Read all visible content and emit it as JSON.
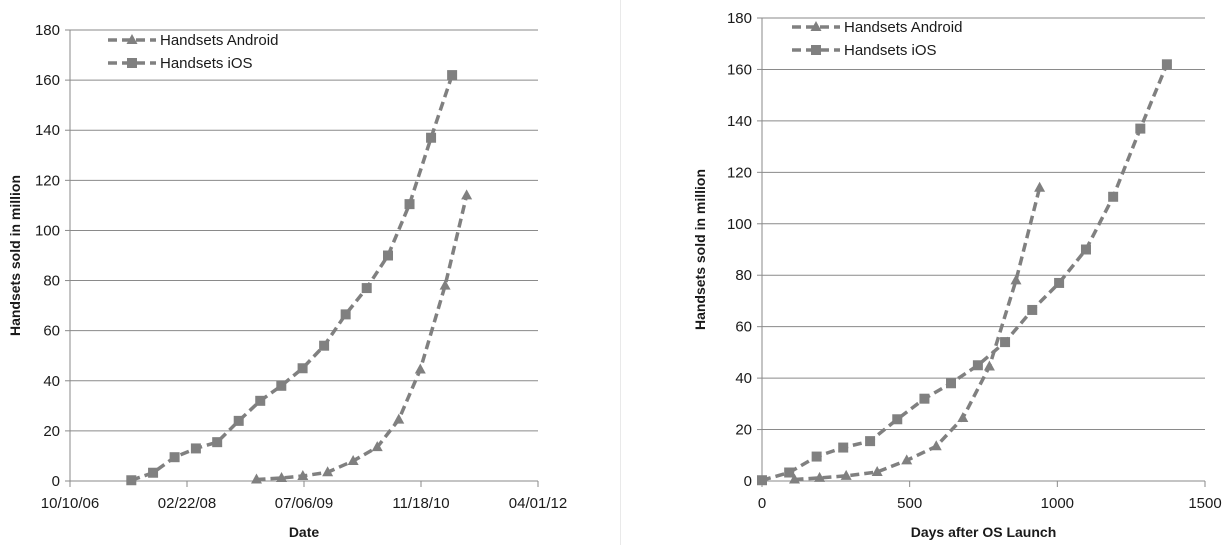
{
  "chart_data": [
    {
      "type": "line",
      "title": "",
      "xlabel": "Date",
      "ylabel": "Handsets sold in million",
      "x_is_date": true,
      "xticks": [
        "10/10/06",
        "02/22/08",
        "07/06/09",
        "11/18/10",
        "04/01/12"
      ],
      "xlim": [
        "10/10/06",
        "04/01/12"
      ],
      "ylim": [
        0,
        180
      ],
      "yticks": [
        0,
        20,
        40,
        60,
        80,
        100,
        120,
        140,
        160,
        180
      ],
      "grid": "horizontal",
      "legend_position": "top-left",
      "series": [
        {
          "name": "Handsets Android",
          "marker": "triangle",
          "color": "#808080",
          "points": [
            [
              "12/15/08",
              0.6
            ],
            [
              "04/01/09",
              1.2
            ],
            [
              "07/01/09",
              2.0
            ],
            [
              "10/15/09",
              3.5
            ],
            [
              "02/01/10",
              8.0
            ],
            [
              "05/15/10",
              13.5
            ],
            [
              "08/15/10",
              24.5
            ],
            [
              "11/15/10",
              44.5
            ],
            [
              "03/01/11",
              78.0
            ],
            [
              "06/01/11",
              114.0
            ]
          ]
        },
        {
          "name": "Handsets iOS",
          "marker": "square",
          "color": "#808080",
          "points": [
            [
              "06/29/07",
              0.3
            ],
            [
              "09/30/07",
              3.3
            ],
            [
              "12/31/07",
              9.5
            ],
            [
              "03/31/08",
              13.0
            ],
            [
              "06/30/08",
              15.5
            ],
            [
              "09/30/08",
              24.0
            ],
            [
              "12/31/08",
              32.0
            ],
            [
              "03/31/09",
              38.0
            ],
            [
              "06/30/09",
              45.0
            ],
            [
              "09/30/09",
              54.0
            ],
            [
              "12/31/09",
              66.5
            ],
            [
              "03/31/10",
              77.0
            ],
            [
              "06/30/10",
              90.0
            ],
            [
              "09/30/10",
              110.5
            ],
            [
              "12/31/10",
              137.0
            ],
            [
              "03/31/11",
              162.0
            ]
          ]
        }
      ]
    },
    {
      "type": "line",
      "title": "",
      "xlabel": "Days after OS Launch",
      "ylabel": "Handsets sold in million",
      "xlim": [
        0,
        1500
      ],
      "xticks": [
        0,
        500,
        1000,
        1500
      ],
      "ylim": [
        0,
        180
      ],
      "yticks": [
        0,
        20,
        40,
        60,
        80,
        100,
        120,
        140,
        160,
        180
      ],
      "grid": "horizontal",
      "legend_position": "top-left",
      "series": [
        {
          "name": "Handsets Android",
          "marker": "triangle",
          "color": "#808080",
          "points": [
            [
              110,
              0.6
            ],
            [
              195,
              1.2
            ],
            [
              285,
              2.0
            ],
            [
              390,
              3.5
            ],
            [
              490,
              8.0
            ],
            [
              590,
              13.5
            ],
            [
              680,
              24.5
            ],
            [
              770,
              44.5
            ],
            [
              860,
              78.0
            ],
            [
              940,
              114.0
            ]
          ]
        },
        {
          "name": "Handsets iOS",
          "marker": "square",
          "color": "#808080",
          "points": [
            [
              0,
              0.3
            ],
            [
              92,
              3.3
            ],
            [
              185,
              9.5
            ],
            [
              275,
              13.0
            ],
            [
              366,
              15.5
            ],
            [
              458,
              24.0
            ],
            [
              550,
              32.0
            ],
            [
              640,
              38.0
            ],
            [
              731,
              45.0
            ],
            [
              823,
              54.0
            ],
            [
              915,
              66.5
            ],
            [
              1006,
              77.0
            ],
            [
              1097,
              90.0
            ],
            [
              1189,
              110.5
            ],
            [
              1281,
              137.0
            ],
            [
              1371,
              162.0
            ]
          ]
        }
      ]
    }
  ]
}
